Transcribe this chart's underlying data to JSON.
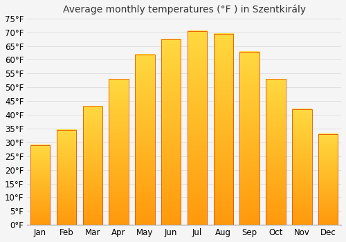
{
  "title": "Average monthly temperatures (°F ) in Szentkirály",
  "months": [
    "Jan",
    "Feb",
    "Mar",
    "Apr",
    "May",
    "Jun",
    "Jul",
    "Aug",
    "Sep",
    "Oct",
    "Nov",
    "Dec"
  ],
  "values": [
    29,
    34.5,
    43,
    53,
    62,
    67.5,
    70.5,
    69.5,
    63,
    53,
    42,
    33
  ],
  "bar_color_top": "#FFB300",
  "bar_color_bottom": "#FFA000",
  "bar_color_mid": "#FFCA28",
  "bar_edge_color": "#E65100",
  "background_color": "#F5F5F5",
  "plot_bg_color": "#F5F5F5",
  "grid_color": "#DDDDDD",
  "ylim": [
    0,
    75
  ],
  "yticks": [
    0,
    5,
    10,
    15,
    20,
    25,
    30,
    35,
    40,
    45,
    50,
    55,
    60,
    65,
    70,
    75
  ],
  "ylabel_suffix": "°F",
  "title_fontsize": 10,
  "tick_fontsize": 8.5,
  "font_family": "DejaVu Sans"
}
